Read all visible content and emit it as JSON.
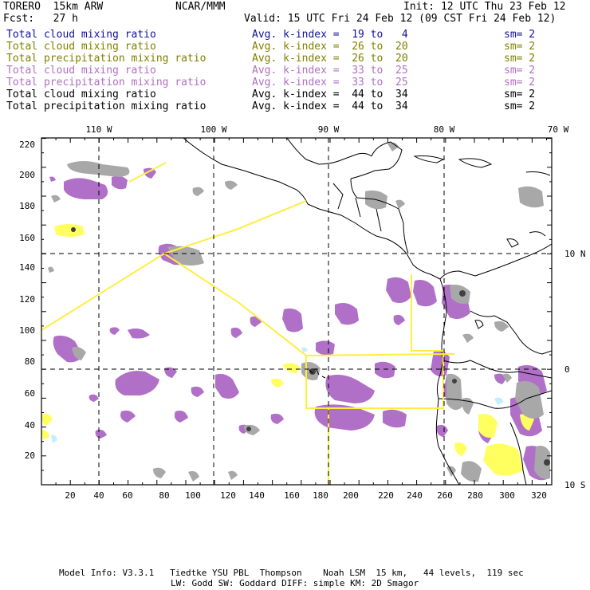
{
  "header": {
    "model": "TORERO  15km ARW",
    "center": "NCAR/MMM",
    "init": "Init: 12 UTC Thu 23 Feb 12",
    "fcst": "Fcst:   27 h",
    "valid": "Valid: 15 UTC Fri 24 Feb 12 (09 CST Fri 24 Feb 12)"
  },
  "legend": [
    {
      "field": "Total cloud mixing ratio",
      "kindex": "Avg. k-index =  19 to   4",
      "sm": "sm= 2",
      "color": "#1010a0"
    },
    {
      "field": "Total cloud mixing ratio",
      "kindex": "Avg. k-index =  26 to  20",
      "sm": "sm= 2",
      "color": "#808000"
    },
    {
      "field": "Total precipitation mixing ratio",
      "kindex": "Avg. k-index =  26 to  20",
      "sm": "sm= 2",
      "color": "#808000"
    },
    {
      "field": "Total cloud mixing ratio",
      "kindex": "Avg. k-index =  33 to  25",
      "sm": "sm= 2",
      "color": "#b070c0"
    },
    {
      "field": "Total precipitation mixing ratio",
      "kindex": "Avg. k-index =  33 to  25",
      "sm": "sm= 2",
      "color": "#b070c0"
    },
    {
      "field": "Total cloud mixing ratio",
      "kindex": "Avg. k-index =  44 to  34",
      "sm": "sm= 2",
      "color": "#000000"
    },
    {
      "field": "Total precipitation mixing ratio",
      "kindex": "Avg. k-index =  44 to  34",
      "sm": "sm= 2",
      "color": "#000000"
    }
  ],
  "map": {
    "lon_labels": [
      "110 W",
      "100 W",
      "90 W",
      "80 W",
      "70 W"
    ],
    "lat_labels": [
      "10 N",
      "0",
      "10 S"
    ],
    "x_ticks": [
      "20",
      "40",
      "60",
      "80",
      "100",
      "120",
      "140",
      "160",
      "180",
      "200",
      "220",
      "240",
      "260",
      "280",
      "300",
      "320"
    ],
    "y_ticks": [
      "20",
      "40",
      "60",
      "80",
      "100",
      "120",
      "140",
      "160",
      "180",
      "200",
      "220"
    ],
    "colors": {
      "gray": "#a8a8a8",
      "dark": "#404040",
      "purple": "#b070c8",
      "yellow": "#ffff60",
      "cyan": "#c0f0ff",
      "boundary": "#ffee40",
      "coast": "#000000"
    }
  },
  "footer": {
    "line1": "Model Info: V3.3.1   Tiedtke YSU PBL  Thompson    Noah LSM  15 km,   44 levels,  119 sec",
    "line2": "LW: Godd SW: Goddard DIFF: simple KM: 2D Smagor"
  }
}
